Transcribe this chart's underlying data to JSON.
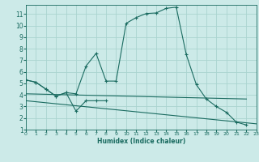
{
  "xlabel": "Humidex (Indice chaleur)",
  "bg_color": "#cceae8",
  "grid_color": "#aad4d0",
  "line_color": "#1a6b60",
  "xlim": [
    0,
    23
  ],
  "ylim": [
    1,
    11.8
  ],
  "ytick_vals": [
    1,
    2,
    3,
    4,
    5,
    6,
    7,
    8,
    9,
    10,
    11
  ],
  "xtick_vals": [
    0,
    1,
    2,
    3,
    4,
    5,
    6,
    7,
    8,
    9,
    10,
    11,
    12,
    13,
    14,
    15,
    16,
    17,
    18,
    19,
    20,
    21,
    22,
    23
  ],
  "curve1_x": [
    0,
    1,
    2,
    3,
    4,
    5,
    6,
    7,
    8,
    9,
    10,
    11,
    12,
    13,
    14,
    15,
    16,
    17,
    18,
    19,
    20,
    21,
    22
  ],
  "curve1_y": [
    5.3,
    5.1,
    4.5,
    3.9,
    4.2,
    4.1,
    6.5,
    7.6,
    5.2,
    5.2,
    10.2,
    10.7,
    11.05,
    11.1,
    11.5,
    11.6,
    7.5,
    4.9,
    3.65,
    3.0,
    2.5,
    1.65,
    1.4
  ],
  "curve2_x": [
    0,
    1,
    2,
    3,
    4,
    5,
    6,
    7,
    8
  ],
  "curve2_y": [
    5.3,
    5.1,
    4.5,
    3.9,
    4.2,
    2.6,
    3.5,
    3.5,
    3.5
  ],
  "line3_x": [
    0,
    22
  ],
  "line3_y": [
    4.1,
    3.65
  ],
  "line4_x": [
    0,
    23
  ],
  "line4_y": [
    3.5,
    1.5
  ]
}
